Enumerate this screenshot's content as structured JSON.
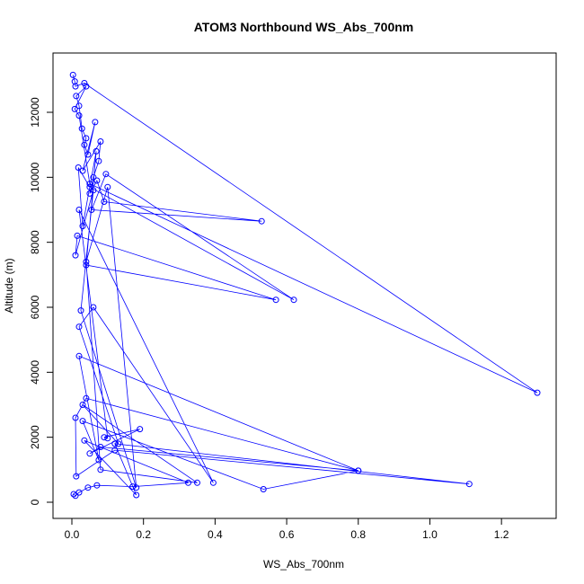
{
  "chart_data": {
    "type": "scatter",
    "title": "ATOM3 Northbound WS_Abs_700nm",
    "xlabel": "WS_Abs_700nm",
    "ylabel": "Altitude (m)",
    "xlim": [
      0,
      1.35
    ],
    "ylim": [
      0,
      13300
    ],
    "x_ticks": [
      0.0,
      0.2,
      0.4,
      0.6,
      0.8,
      1.0,
      1.2
    ],
    "x_tick_labels": [
      "0.0",
      "0.2",
      "0.4",
      "0.6",
      "0.8",
      "1.0",
      "1.2"
    ],
    "y_ticks": [
      0,
      2000,
      4000,
      6000,
      8000,
      10000,
      12000
    ],
    "y_tick_labels": [
      "0",
      "2000",
      "4000",
      "6000",
      "8000",
      "10000",
      "12000"
    ],
    "grid": false,
    "style": "points connected by lines (type = b)",
    "color": "#0000ff",
    "series": [
      {
        "x": [
          0.003,
          0.008,
          0.01,
          0.035,
          1.3,
          0.05,
          0.02,
          0.008,
          0.04,
          0.012,
          0.02,
          0.028,
          0.04,
          0.035,
          0.045,
          0.065,
          0.03,
          0.08,
          0.075,
          0.06,
          0.05,
          0.07,
          0.09,
          0.53,
          0.055,
          0.095,
          0.62,
          0.05,
          0.018,
          0.03,
          0.068,
          0.04,
          0.57,
          0.015,
          0.01,
          0.06,
          0.025,
          0.18,
          0.1,
          0.04,
          0.08,
          0.35,
          0.03,
          0.13,
          0.02,
          0.06,
          0.395,
          0.02,
          0.1,
          0.09,
          0.19,
          0.05,
          0.08,
          0.8,
          0.02,
          0.075,
          0.03,
          0.535,
          0.8,
          0.04,
          0.01,
          0.012,
          0.12,
          1.11,
          0.12,
          0.18,
          0.035,
          0.325,
          0.17,
          0.07,
          0.045,
          0.02,
          0.01,
          0.005
        ],
        "y": [
          13150,
          12950,
          12800,
          12900,
          3370,
          9800,
          11900,
          12100,
          12800,
          12500,
          12200,
          11500,
          11200,
          11000,
          10700,
          11700,
          10200,
          11100,
          10500,
          10000,
          9500,
          9900,
          9250,
          8650,
          9000,
          10100,
          6230,
          9700,
          10300,
          8500,
          10800,
          7300,
          6230,
          8200,
          7600,
          9600,
          5900,
          450,
          9700,
          7400,
          1000,
          600,
          3000,
          1800,
          5400,
          6000,
          600,
          9000,
          1970,
          2000,
          2250,
          1500,
          1700,
          970,
          4500,
          1300,
          2500,
          400,
          970,
          3200,
          2600,
          800,
          1600,
          560,
          1800,
          220,
          1900,
          600,
          480,
          520,
          450,
          300,
          200,
          250
        ]
      }
    ]
  }
}
